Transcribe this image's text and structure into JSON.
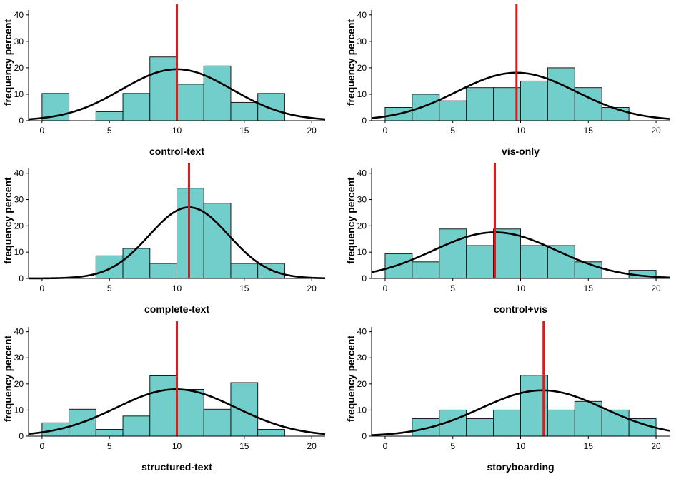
{
  "chart_data": [
    {
      "type": "bar",
      "xlabel": "control-text",
      "ylabel": "frequency percent",
      "xlim": [
        -1,
        21
      ],
      "ylim": [
        0,
        44
      ],
      "xticks": [
        "0",
        "5",
        "10",
        "15",
        "20"
      ],
      "yticks": [
        "0",
        "10",
        "20",
        "30",
        "40"
      ],
      "bins": [
        [
          0,
          2
        ],
        [
          2,
          4
        ],
        [
          4,
          6
        ],
        [
          6,
          8
        ],
        [
          8,
          10
        ],
        [
          10,
          12
        ],
        [
          12,
          14
        ],
        [
          14,
          16
        ],
        [
          16,
          18
        ]
      ],
      "values": [
        10.3,
        0,
        3.4,
        10.3,
        24.1,
        13.8,
        20.7,
        6.9,
        10.3
      ],
      "mean": 10,
      "normal_curve": {
        "mean": 10.0,
        "sd": 4.1
      },
      "colors": {
        "bar": "#72cecb",
        "mean_line": "#e0191c",
        "curve": "#000000"
      }
    },
    {
      "type": "bar",
      "xlabel": "vis-only",
      "ylabel": "frequency percent",
      "xlim": [
        -1,
        21
      ],
      "ylim": [
        0,
        44
      ],
      "xticks": [
        "0",
        "5",
        "10",
        "15",
        "20"
      ],
      "yticks": [
        "0",
        "10",
        "20",
        "30",
        "40"
      ],
      "bins": [
        [
          0,
          2
        ],
        [
          2,
          4
        ],
        [
          4,
          6
        ],
        [
          6,
          8
        ],
        [
          8,
          10
        ],
        [
          10,
          12
        ],
        [
          12,
          14
        ],
        [
          14,
          16
        ],
        [
          16,
          18
        ]
      ],
      "values": [
        5,
        10,
        7.5,
        12.5,
        12.5,
        15,
        20,
        12.5,
        5
      ],
      "mean": 9.7,
      "normal_curve": {
        "mean": 9.7,
        "sd": 4.4
      },
      "colors": {
        "bar": "#72cecb",
        "mean_line": "#e0191c",
        "curve": "#000000"
      }
    },
    {
      "type": "bar",
      "xlabel": "complete-text",
      "ylabel": "frequency percent",
      "xlim": [
        -1,
        21
      ],
      "ylim": [
        0,
        44
      ],
      "xticks": [
        "0",
        "5",
        "10",
        "15",
        "20"
      ],
      "yticks": [
        "0",
        "10",
        "20",
        "30",
        "40"
      ],
      "bins": [
        [
          4,
          6
        ],
        [
          6,
          8
        ],
        [
          8,
          10
        ],
        [
          10,
          12
        ],
        [
          12,
          14
        ],
        [
          14,
          16
        ],
        [
          16,
          18
        ]
      ],
      "values": [
        8.6,
        11.4,
        5.7,
        34.3,
        28.6,
        5.7,
        5.7
      ],
      "mean": 10.9,
      "normal_curve": {
        "mean": 10.9,
        "sd": 2.95
      },
      "colors": {
        "bar": "#72cecb",
        "mean_line": "#e0191c",
        "curve": "#000000"
      }
    },
    {
      "type": "bar",
      "xlabel": "control+vis",
      "ylabel": "frequency percent",
      "xlim": [
        -1,
        21
      ],
      "ylim": [
        0,
        44
      ],
      "xticks": [
        "0",
        "5",
        "10",
        "15",
        "20"
      ],
      "yticks": [
        "0",
        "10",
        "20",
        "30",
        "40"
      ],
      "bins": [
        [
          0,
          2
        ],
        [
          2,
          4
        ],
        [
          4,
          6
        ],
        [
          6,
          8
        ],
        [
          8,
          10
        ],
        [
          10,
          12
        ],
        [
          12,
          14
        ],
        [
          14,
          16
        ],
        [
          18,
          20
        ]
      ],
      "values": [
        9.4,
        6.3,
        18.8,
        12.5,
        18.8,
        12.5,
        12.5,
        6.3,
        3.1
      ],
      "mean": 8.1,
      "normal_curve": {
        "mean": 8.1,
        "sd": 4.55
      },
      "colors": {
        "bar": "#72cecb",
        "mean_line": "#e0191c",
        "curve": "#000000"
      }
    },
    {
      "type": "bar",
      "xlabel": "structured-text",
      "ylabel": "frequency percent",
      "xlim": [
        -1,
        21
      ],
      "ylim": [
        0,
        44
      ],
      "xticks": [
        "0",
        "5",
        "10",
        "15",
        "20"
      ],
      "yticks": [
        "0",
        "10",
        "20",
        "30",
        "40"
      ],
      "bins": [
        [
          0,
          2
        ],
        [
          2,
          4
        ],
        [
          4,
          6
        ],
        [
          6,
          8
        ],
        [
          8,
          10
        ],
        [
          10,
          12
        ],
        [
          12,
          14
        ],
        [
          14,
          16
        ],
        [
          16,
          18
        ]
      ],
      "values": [
        5.1,
        10.3,
        2.6,
        7.7,
        23.1,
        17.9,
        10.3,
        20.5,
        2.6
      ],
      "mean": 10,
      "normal_curve": {
        "mean": 9.95,
        "sd": 4.45
      },
      "colors": {
        "bar": "#72cecb",
        "mean_line": "#e0191c",
        "curve": "#000000"
      }
    },
    {
      "type": "bar",
      "xlabel": "storyboarding",
      "ylabel": "frequency percent",
      "xlim": [
        -1,
        21
      ],
      "ylim": [
        0,
        44
      ],
      "xticks": [
        "0",
        "5",
        "10",
        "15",
        "20"
      ],
      "yticks": [
        "0",
        "10",
        "20",
        "30",
        "40"
      ],
      "bins": [
        [
          2,
          4
        ],
        [
          4,
          6
        ],
        [
          6,
          8
        ],
        [
          8,
          10
        ],
        [
          10,
          12
        ],
        [
          12,
          14
        ],
        [
          14,
          16
        ],
        [
          16,
          18
        ],
        [
          18,
          20
        ]
      ],
      "values": [
        6.7,
        10,
        6.7,
        10,
        23.3,
        10,
        13.3,
        10,
        6.7
      ],
      "mean": 11.7,
      "normal_curve": {
        "mean": 11.6,
        "sd": 4.55
      },
      "colors": {
        "bar": "#72cecb",
        "mean_line": "#e0191c",
        "curve": "#000000"
      }
    }
  ]
}
